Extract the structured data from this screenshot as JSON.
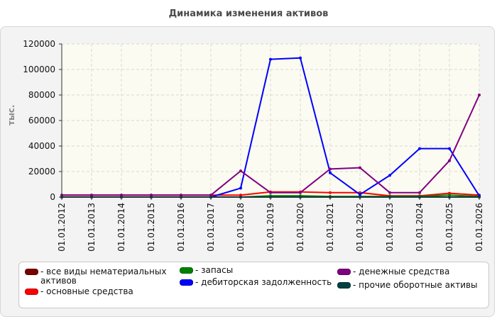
{
  "chart_data": {
    "type": "line",
    "title": "Динамика изменения активов",
    "ylabel": "тыс.",
    "ylim": [
      0,
      120000
    ],
    "yticks": [
      "0",
      "20000",
      "40000",
      "60000",
      "80000",
      "100000",
      "120000"
    ],
    "categories": [
      "01.01.2012",
      "01.01.2013",
      "01.01.2014",
      "01.01.2015",
      "01.01.2016",
      "01.01.2017",
      "01.01.2018",
      "01.01.2019",
      "01.01.2020",
      "01.01.2021",
      "01.01.2022",
      "01.01.2023",
      "01.01.2024",
      "01.01.2025",
      "01.01.2026"
    ],
    "grid": true,
    "legend_position": "bottom",
    "series": [
      {
        "name": "все виды нематериальных активов",
        "color": "#7a0000",
        "values": [
          0,
          0,
          0,
          0,
          0,
          0,
          0,
          0,
          0,
          0,
          0,
          0,
          0,
          0,
          0
        ]
      },
      {
        "name": "основные средства",
        "color": "#ff0000",
        "values": [
          1500,
          1500,
          1500,
          1500,
          1500,
          1500,
          1500,
          4000,
          4000,
          3500,
          3500,
          1000,
          1000,
          3000,
          1500
        ]
      },
      {
        "name": "запасы",
        "color": "#008000",
        "values": [
          0,
          0,
          0,
          0,
          0,
          0,
          0,
          1000,
          1000,
          500,
          500,
          500,
          500,
          1500,
          500
        ]
      },
      {
        "name": "дебиторская задолженность",
        "color": "#0000ff",
        "values": [
          0,
          0,
          0,
          0,
          0,
          0,
          7000,
          108000,
          109000,
          19000,
          2000,
          17000,
          38000,
          38000,
          1000
        ]
      },
      {
        "name": "денежные средства",
        "color": "#800080",
        "values": [
          1500,
          1500,
          1500,
          1500,
          1500,
          1500,
          20500,
          3500,
          3500,
          22000,
          23000,
          3500,
          3500,
          28500,
          80000
        ]
      },
      {
        "name": "прочие оборотные активы",
        "color": "#004040",
        "values": [
          0,
          0,
          0,
          0,
          0,
          0,
          0,
          0,
          0,
          0,
          0,
          0,
          0,
          0,
          0
        ]
      }
    ]
  }
}
